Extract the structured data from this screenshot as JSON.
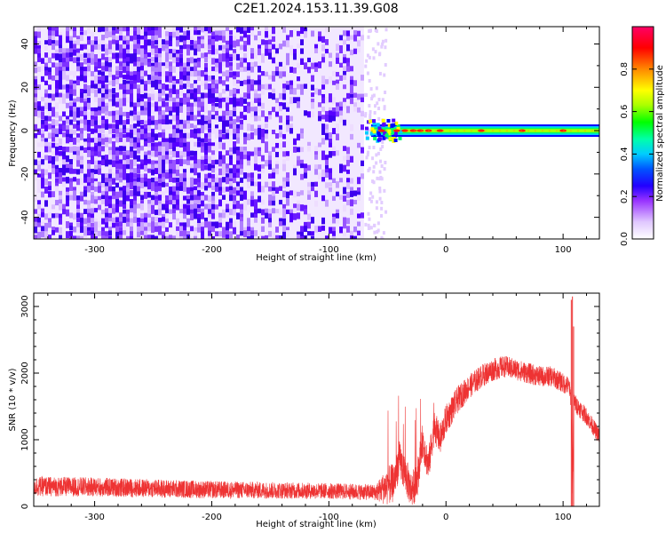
{
  "title": "C2E1.2024.153.11.39.G08",
  "chart_data": [
    {
      "type": "heatmap",
      "title": "C2E1.2024.153.11.39.G08",
      "xlabel": "Height of straight line (km)",
      "ylabel": "Frequency (Hz)",
      "xlim": [
        -352,
        131
      ],
      "ylim": [
        -50,
        48
      ],
      "x_ticks": [
        -300,
        -200,
        -100,
        0,
        100
      ],
      "y_ticks": [
        -40,
        -20,
        0,
        20,
        40
      ],
      "x_tick_labels": [
        "-300",
        "-200",
        "-100",
        "0",
        "100"
      ],
      "y_tick_labels": [
        "-40",
        "-20",
        "0",
        "20",
        "40"
      ],
      "noise_region_x": [
        -352,
        -70
      ],
      "signal_start_x": -70,
      "signal_center_frequency": 0,
      "colorbar": {
        "label": "Normalized spectral amplitude",
        "range": [
          0.0,
          1.0
        ],
        "ticks": [
          0.0,
          0.2,
          0.4,
          0.6,
          0.8
        ],
        "tick_labels": [
          "0.0",
          "0.2",
          "0.4",
          "0.6",
          "0.8"
        ],
        "colors": [
          "#ffffff",
          "#e0c8ff",
          "#9933ff",
          "#4400ff",
          "#0000ff",
          "#00aaff",
          "#00ffcc",
          "#00ff00",
          "#aaff00",
          "#ffff00",
          "#ff8800",
          "#ff0000",
          "#ff0066"
        ]
      },
      "grid": false
    },
    {
      "type": "line",
      "xlabel": "Height of straight line (km)",
      "ylabel": "SNR (10 * v/v)",
      "xlim": [
        -352,
        131
      ],
      "ylim": [
        0,
        3200
      ],
      "x_ticks": [
        -300,
        -200,
        -100,
        0,
        100
      ],
      "y_ticks": [
        0,
        1000,
        2000,
        3000
      ],
      "x_tick_labels": [
        "-300",
        "-200",
        "-100",
        "0",
        "100"
      ],
      "y_tick_labels": [
        "0",
        "1000",
        "2000",
        "3000"
      ],
      "color": "#ee3333",
      "grid": false,
      "envelope": {
        "x": [
          -352,
          -300,
          -250,
          -200,
          -150,
          -100,
          -60,
          -45,
          -40,
          -35,
          -30,
          -25,
          -20,
          -15,
          -10,
          -5,
          0,
          10,
          20,
          30,
          40,
          50,
          60,
          70,
          80,
          90,
          100,
          105,
          107,
          108,
          109,
          110,
          115,
          120,
          131
        ],
        "y": [
          300,
          290,
          270,
          250,
          240,
          230,
          210,
          350,
          700,
          500,
          250,
          350,
          1000,
          600,
          1200,
          1000,
          1300,
          1600,
          1800,
          1950,
          2050,
          2100,
          2050,
          2000,
          1950,
          1950,
          1850,
          1800,
          1600,
          200,
          1600,
          1550,
          1450,
          1350,
          1050
        ]
      },
      "noise_amplitude": [
        [
          -352,
          150
        ],
        [
          -100,
          120
        ],
        [
          -60,
          120
        ],
        [
          -50,
          300
        ],
        [
          -10,
          250
        ],
        [
          20,
          180
        ],
        [
          60,
          160
        ],
        [
          100,
          150
        ],
        [
          131,
          120
        ]
      ],
      "spikes": [
        {
          "x": 108,
          "y": 3150
        },
        {
          "x": 109,
          "y": 2700
        },
        {
          "x": 107,
          "y": 3100
        }
      ]
    }
  ]
}
